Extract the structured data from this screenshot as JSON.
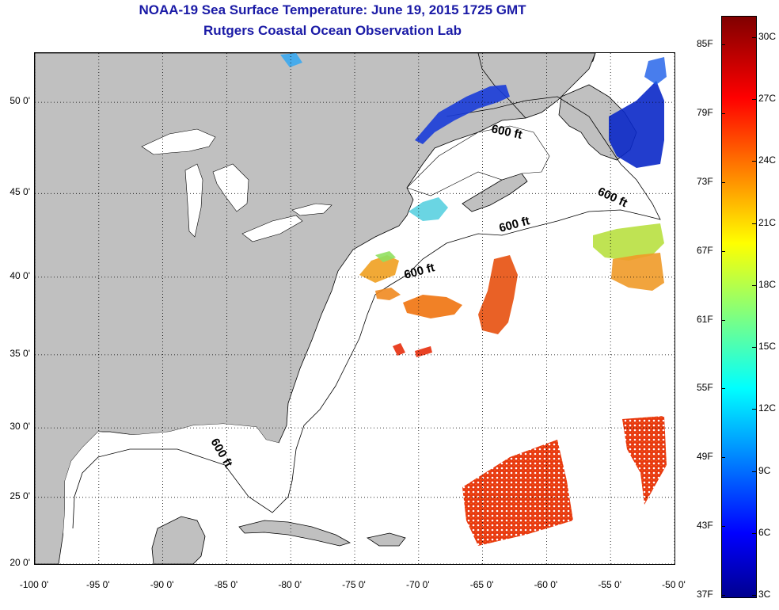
{
  "title": "NOAA-19 Sea Surface Temperature:  June 19, 2015 1725 GMT",
  "subtitle": "Rutgers Coastal Ocean Observation Lab",
  "map": {
    "lon_range": [
      -100,
      -50
    ],
    "lat_range": [
      20,
      52.5
    ],
    "grid": true,
    "lat_ticks": [
      {
        "value": 50,
        "label": "50 0'"
      },
      {
        "value": 45,
        "label": "45 0'"
      },
      {
        "value": 40,
        "label": "40 0'"
      },
      {
        "value": 35,
        "label": "35 0'"
      },
      {
        "value": 30,
        "label": "30 0'"
      },
      {
        "value": 25,
        "label": "25 0'"
      },
      {
        "value": 20,
        "label": "20 0'"
      }
    ],
    "lon_ticks": [
      {
        "value": -100,
        "label": "-100 0'"
      },
      {
        "value": -95,
        "label": "-95 0'"
      },
      {
        "value": -90,
        "label": "-90 0'"
      },
      {
        "value": -85,
        "label": "-85 0'"
      },
      {
        "value": -80,
        "label": "-80 0'"
      },
      {
        "value": -75,
        "label": "-75 0'"
      },
      {
        "value": -70,
        "label": "-70 0'"
      },
      {
        "value": -65,
        "label": "-65 0'"
      },
      {
        "value": -60,
        "label": "-60 0'"
      },
      {
        "value": -55,
        "label": "-55 0'"
      },
      {
        "value": -50,
        "label": "-50 0'"
      }
    ],
    "contour_labels": [
      "600 ft",
      "600 ft",
      "600 ft",
      "600 ft",
      "600 ft"
    ],
    "land_color": "#c0c0c0",
    "water_color": "#ffffff"
  },
  "colorbar": {
    "f_labels": [
      "85F",
      "79F",
      "73F",
      "67F",
      "61F",
      "55F",
      "49F",
      "43F",
      "37F"
    ],
    "c_labels": [
      "30C",
      "27C",
      "24C",
      "21C",
      "18C",
      "15C",
      "12C",
      "9C",
      "6C",
      "3C"
    ]
  }
}
